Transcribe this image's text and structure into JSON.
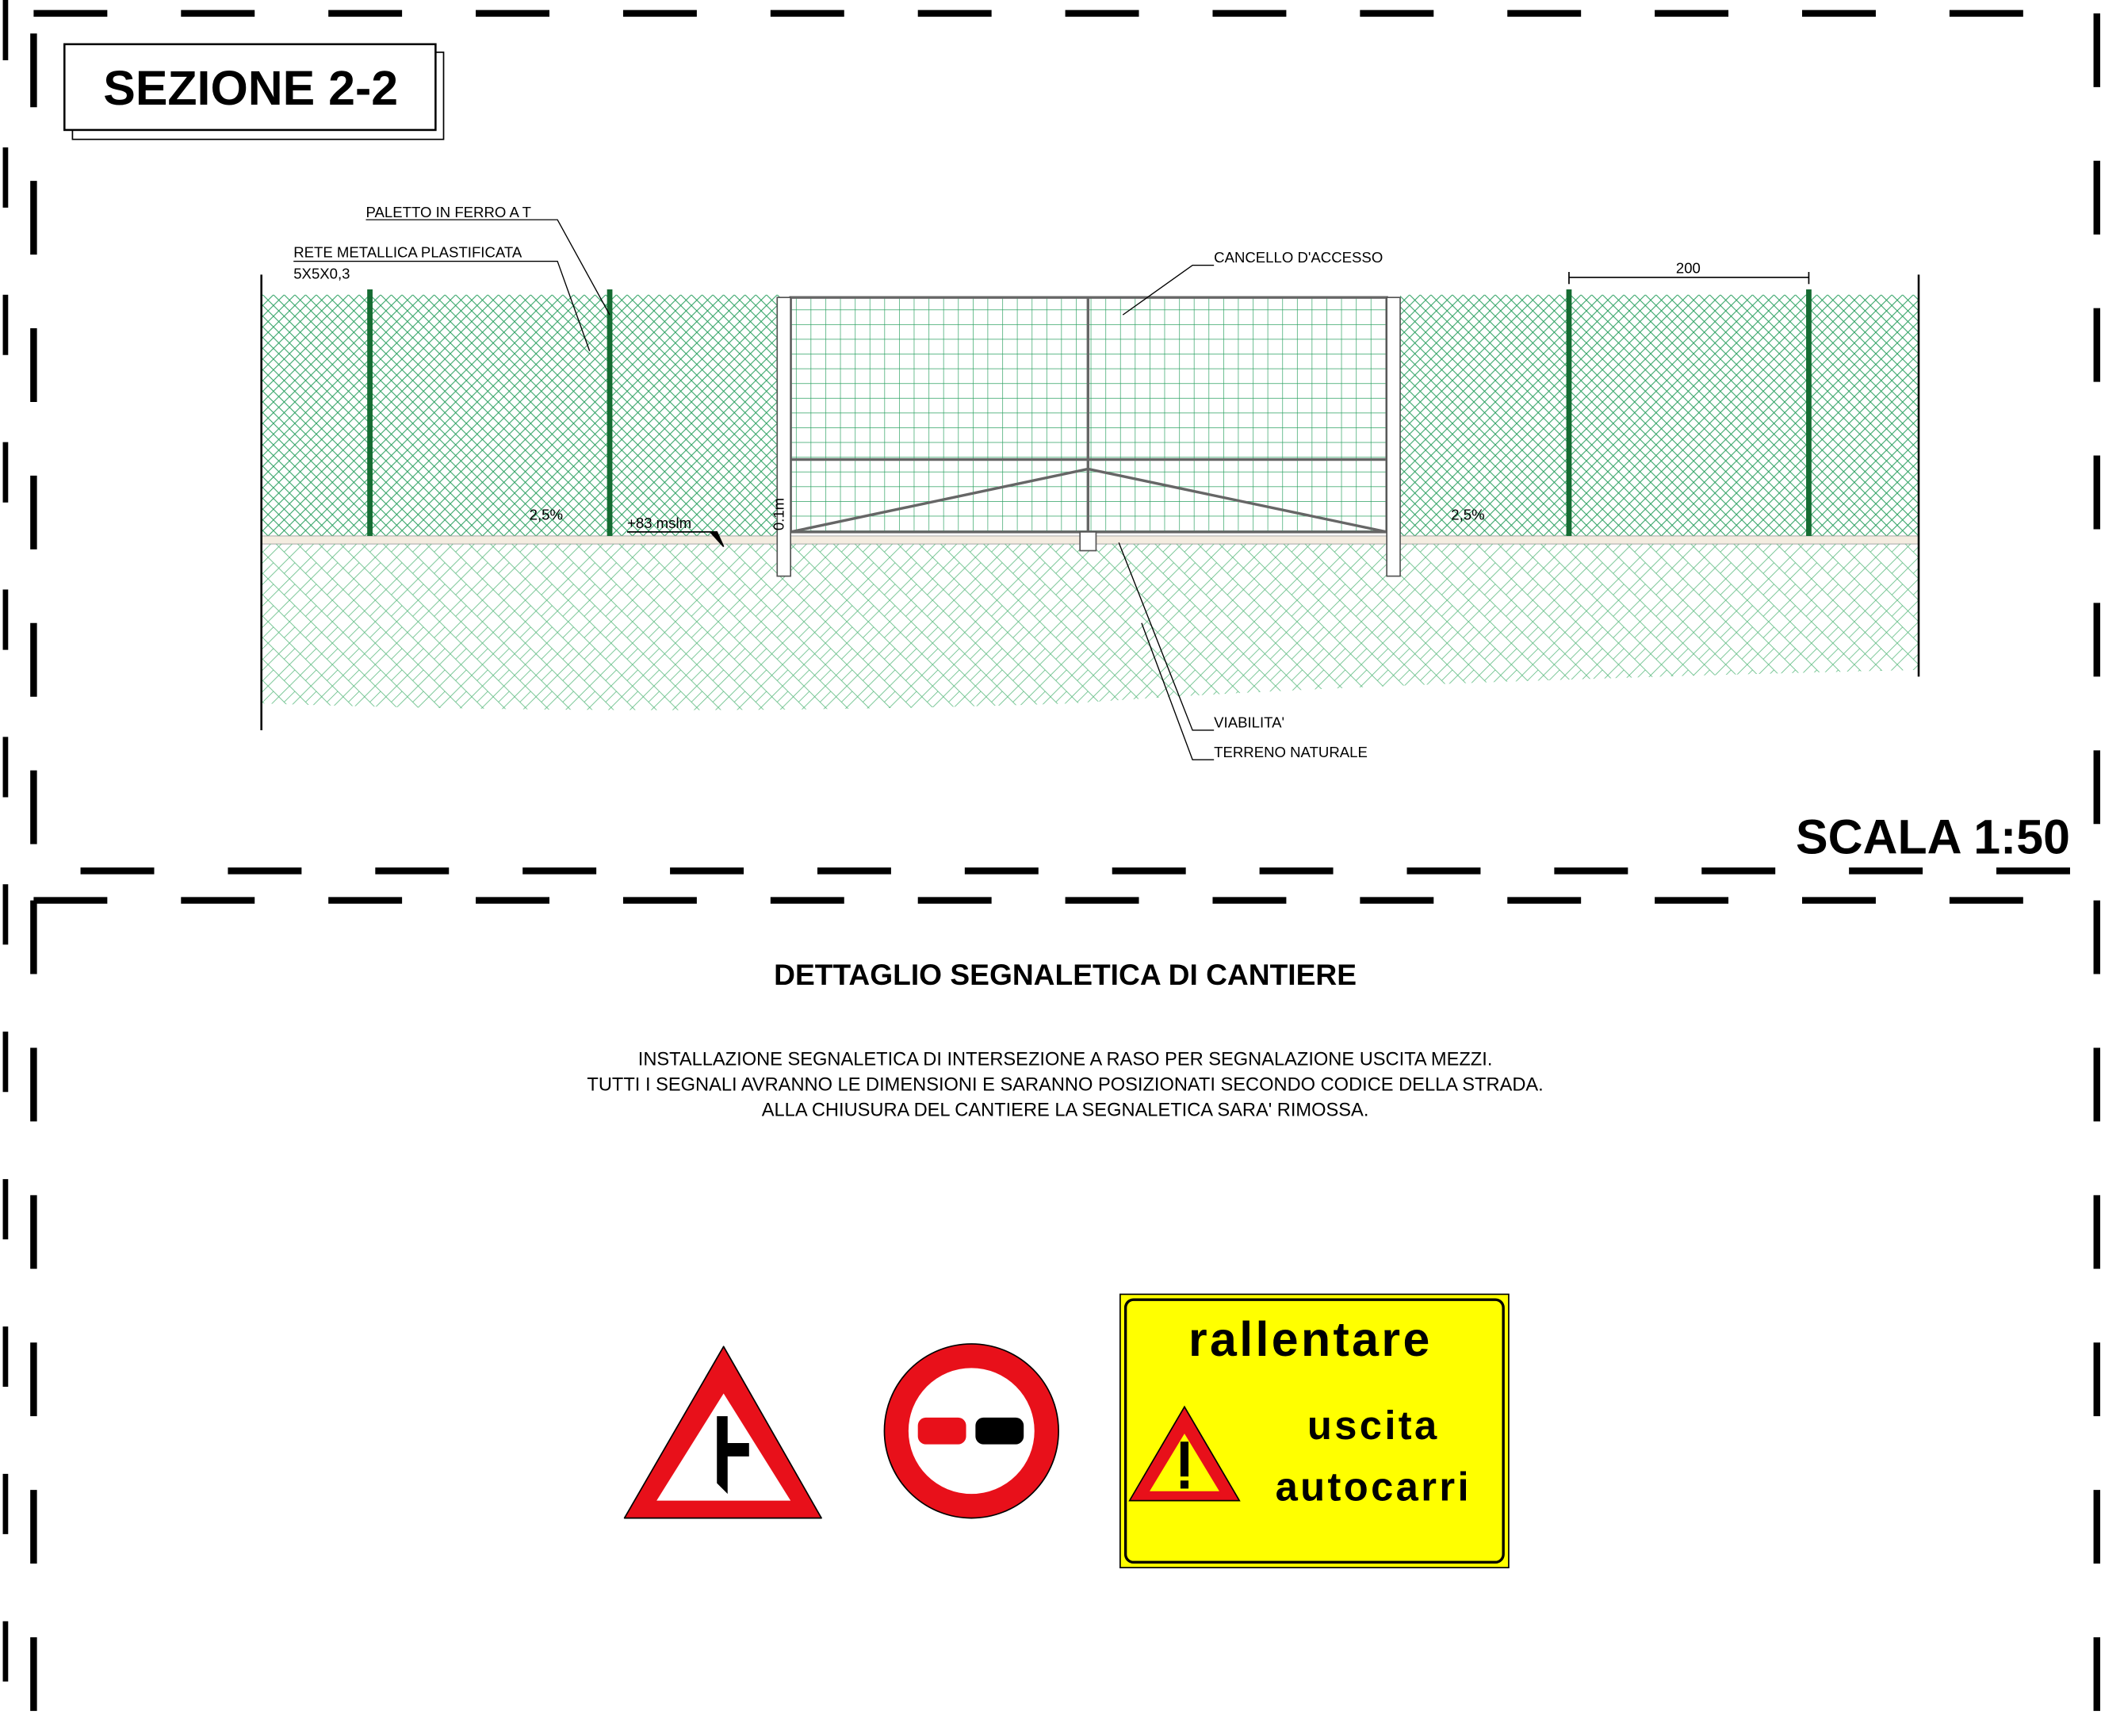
{
  "section": {
    "title": "SEZIONE 2-2",
    "scale": "SCALA 1:50",
    "labels": {
      "post": "PALETTO IN FERRO A T",
      "mesh": "RETE METALLICA PLASTIFICATA",
      "mesh_size": "5X5X0,3",
      "gate": "CANCELLO D'ACCESSO",
      "spacing": "200",
      "slope_left": "2,5%",
      "slope_right": "2,5%",
      "elevation": "+83 mslm",
      "height": "0.1m",
      "road": "VIABILITA'",
      "ground": "TERRENO NATURALE"
    }
  },
  "signage": {
    "title": "DETTAGLIO SEGNALETICA DI CANTIERE",
    "notes": [
      "INSTALLAZIONE SEGNALETICA DI INTERSEZIONE A RASO PER SEGNALAZIONE USCITA MEZZI.",
      "TUTTI I SEGNALI AVRANNO LE DIMENSIONI E SARANNO POSIZIONATI SECONDO CODICE DELLA STRADA.",
      "ALLA CHIUSURA DEL CANTIERE LA SEGNALETICA SARA' RIMOSSA."
    ],
    "sign_text": [
      "rallentare",
      "uscita",
      "autocarri"
    ]
  }
}
